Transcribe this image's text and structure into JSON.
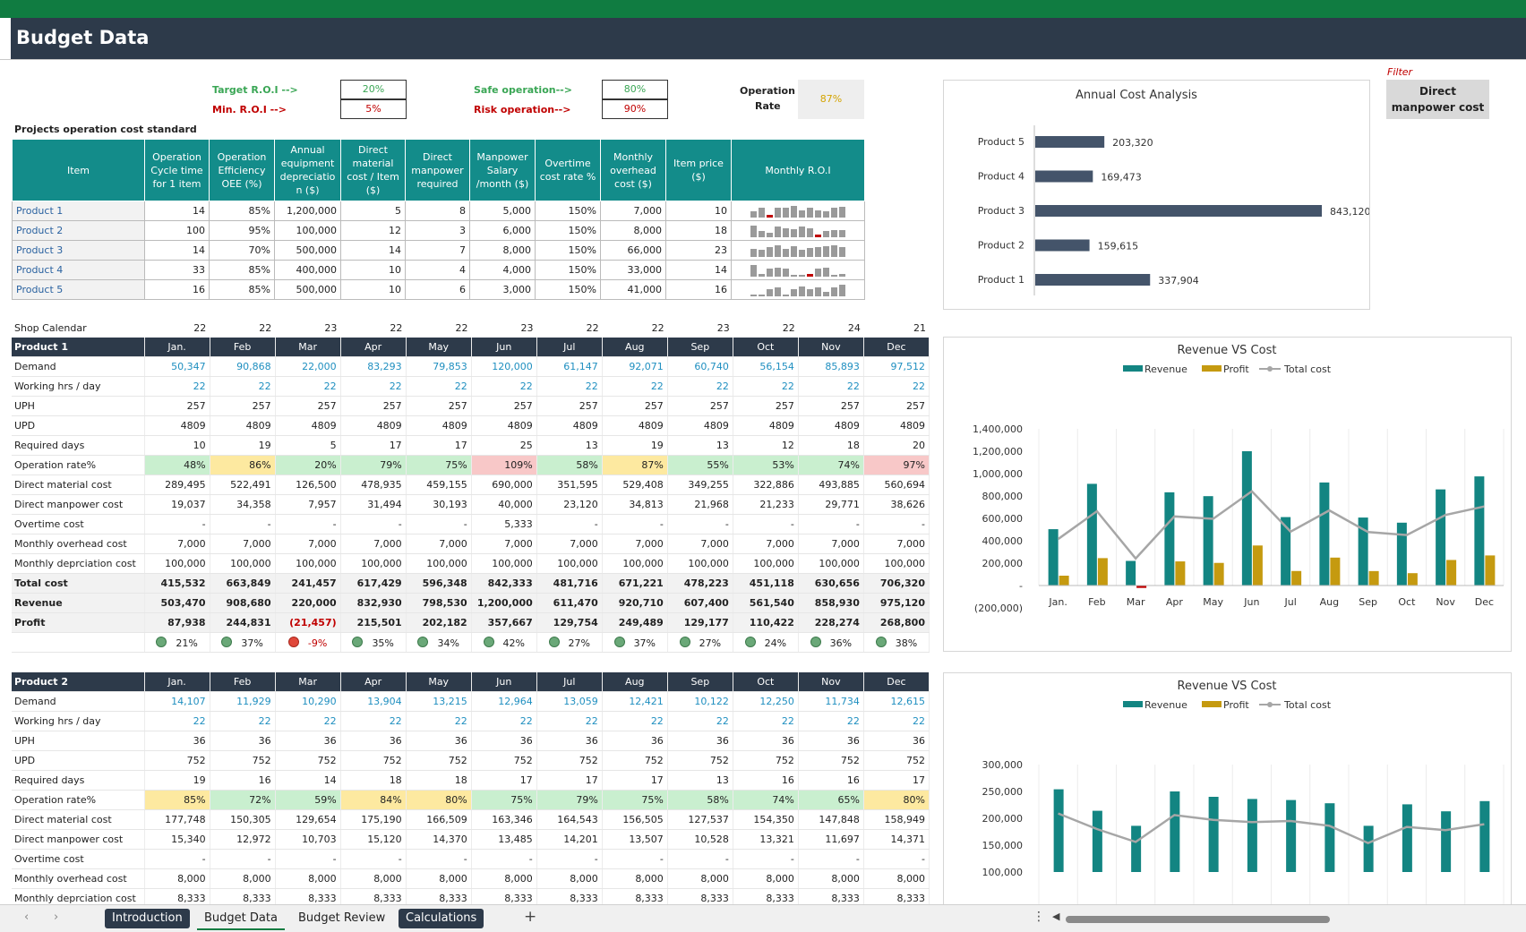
{
  "title": "Budget Data",
  "kpi": {
    "target_roi_label": "Target R.O.I -->",
    "target_roi": "20%",
    "min_roi_label": "Min.  R.O.I -->",
    "min_roi": "5%",
    "safe_label": "Safe operation-->",
    "safe": "80%",
    "risk_label": "Risk operation-->",
    "risk": "90%",
    "op_rate_label_1": "Operation",
    "op_rate_label_2": "Rate",
    "op_rate": "87%"
  },
  "standard": {
    "caption": "Projects operation cost standard",
    "headers": [
      "Item",
      "Operation Cycle time for 1 item",
      "Operation Efficiency OEE (%)",
      "Annual equipment depreciatio n ($)",
      "Direct material cost / Item ($)",
      "Direct manpower required",
      "Manpower Salary /month ($)",
      "Overtime cost rate %",
      "Monthly overhead cost ($)",
      "Item price ($)",
      "Monthly R.O.I"
    ],
    "rows": [
      {
        "name": "Product 1",
        "cells": [
          "14",
          "85%",
          "1,200,000",
          "5",
          "8",
          "5,000",
          "150%",
          "7,000",
          "10"
        ],
        "spark": [
          21,
          37,
          -9,
          35,
          34,
          42,
          27,
          37,
          27,
          24,
          36,
          38
        ]
      },
      {
        "name": "Product 2",
        "cells": [
          "100",
          "95%",
          "100,000",
          "12",
          "3",
          "6,000",
          "150%",
          "8,000",
          "18"
        ],
        "spark": [
          38,
          20,
          14,
          34,
          30,
          26,
          36,
          28,
          -3,
          20,
          22,
          24
        ]
      },
      {
        "name": "Product 3",
        "cells": [
          "14",
          "70%",
          "500,000",
          "14",
          "7",
          "8,000",
          "150%",
          "66,000",
          "23"
        ],
        "spark": [
          10,
          9,
          12,
          14,
          10,
          13,
          9,
          11,
          12,
          13,
          14,
          12
        ]
      },
      {
        "name": "Product 4",
        "cells": [
          "33",
          "85%",
          "400,000",
          "10",
          "4",
          "4,000",
          "150%",
          "33,000",
          "14"
        ],
        "spark": [
          18,
          4,
          12,
          14,
          13,
          3,
          2,
          -6,
          12,
          14,
          3,
          4
        ]
      },
      {
        "name": "Product 5",
        "cells": [
          "16",
          "85%",
          "500,000",
          "10",
          "6",
          "3,000",
          "150%",
          "41,000",
          "16"
        ],
        "spark": [
          2,
          2,
          10,
          12,
          3,
          10,
          14,
          10,
          12,
          6,
          12,
          16
        ]
      }
    ]
  },
  "filter": {
    "label": "Filter",
    "value": "Direct manpower cost"
  },
  "annual": {
    "title": "Annual Cost Analysis",
    "chart_data": {
      "type": "bar",
      "categories": [
        "Product 5",
        "Product 4",
        "Product 3",
        "Product 2",
        "Product 1"
      ],
      "values": [
        203320,
        169473,
        843120,
        159615,
        337904
      ],
      "labels": [
        "203,320",
        "169,473",
        "843,120",
        "159,615",
        "337,904"
      ]
    }
  },
  "calendar": {
    "label": "Shop Calendar",
    "days": [
      "22",
      "22",
      "23",
      "22",
      "22",
      "23",
      "22",
      "22",
      "23",
      "22",
      "24",
      "21"
    ]
  },
  "months": [
    "Jan.",
    "Feb",
    "Mar",
    "Apr",
    "May",
    "Jun",
    "Jul",
    "Aug",
    "Sep",
    "Oct",
    "Nov",
    "Dec"
  ],
  "p1": {
    "name": "Product 1",
    "rows": [
      {
        "label": "Demand",
        "cls": "blue",
        "v": [
          "50,347",
          "90,868",
          "22,000",
          "83,293",
          "79,853",
          "120,000",
          "61,147",
          "92,071",
          "60,740",
          "56,154",
          "85,893",
          "97,512"
        ]
      },
      {
        "label": "Working hrs / day",
        "cls": "blue",
        "v": [
          "22",
          "22",
          "22",
          "22",
          "22",
          "22",
          "22",
          "22",
          "22",
          "22",
          "22",
          "22"
        ]
      },
      {
        "label": "UPH",
        "v": [
          "257",
          "257",
          "257",
          "257",
          "257",
          "257",
          "257",
          "257",
          "257",
          "257",
          "257",
          "257"
        ]
      },
      {
        "label": "UPD",
        "v": [
          "4809",
          "4809",
          "4809",
          "4809",
          "4809",
          "4809",
          "4809",
          "4809",
          "4809",
          "4809",
          "4809",
          "4809"
        ]
      },
      {
        "label": "Required days",
        "v": [
          "10",
          "19",
          "5",
          "17",
          "17",
          "25",
          "13",
          "19",
          "13",
          "12",
          "18",
          "20"
        ]
      },
      {
        "label": "Operation rate%",
        "rate": true,
        "v": [
          "48%",
          "86%",
          "20%",
          "79%",
          "75%",
          "109%",
          "58%",
          "87%",
          "55%",
          "53%",
          "74%",
          "97%"
        ]
      },
      {
        "label": "Direct material cost",
        "v": [
          "289,495",
          "522,491",
          "126,500",
          "478,935",
          "459,155",
          "690,000",
          "351,595",
          "529,408",
          "349,255",
          "322,886",
          "493,885",
          "560,694"
        ]
      },
      {
        "label": "Direct manpower cost",
        "v": [
          "19,037",
          "34,358",
          "7,957",
          "31,494",
          "30,193",
          "40,000",
          "23,120",
          "34,813",
          "21,968",
          "21,233",
          "29,771",
          "38,626"
        ]
      },
      {
        "label": "Overtime cost",
        "v": [
          "-",
          "-",
          "-",
          "-",
          "-",
          "5,333",
          "-",
          "-",
          "-",
          "-",
          "-",
          "-"
        ]
      },
      {
        "label": "Monthly overhead cost",
        "v": [
          "7,000",
          "7,000",
          "7,000",
          "7,000",
          "7,000",
          "7,000",
          "7,000",
          "7,000",
          "7,000",
          "7,000",
          "7,000",
          "7,000"
        ]
      },
      {
        "label": "Monthly deprciation cost",
        "v": [
          "100,000",
          "100,000",
          "100,000",
          "100,000",
          "100,000",
          "100,000",
          "100,000",
          "100,000",
          "100,000",
          "100,000",
          "100,000",
          "100,000"
        ]
      },
      {
        "label": "Total cost",
        "bold": true,
        "tot": true,
        "v": [
          "415,532",
          "663,849",
          "241,457",
          "617,429",
          "596,348",
          "842,333",
          "481,716",
          "671,221",
          "478,223",
          "451,118",
          "630,656",
          "706,320"
        ]
      },
      {
        "label": "Revenue",
        "bold": true,
        "tot": true,
        "v": [
          "503,470",
          "908,680",
          "220,000",
          "832,930",
          "798,530",
          "1,200,000",
          "611,470",
          "920,710",
          "607,400",
          "561,540",
          "858,930",
          "975,120"
        ]
      },
      {
        "label": "Profit",
        "bold": true,
        "tot": true,
        "v": [
          "87,938",
          "244,831",
          "(21,457)",
          "215,501",
          "202,182",
          "357,667",
          "129,754",
          "249,489",
          "129,177",
          "110,422",
          "228,274",
          "268,800"
        ]
      }
    ],
    "roi": [
      "21%",
      "37%",
      "-9%",
      "35%",
      "34%",
      "42%",
      "27%",
      "37%",
      "27%",
      "24%",
      "36%",
      "38%"
    ]
  },
  "p2": {
    "name": "Product 2",
    "rows": [
      {
        "label": "Demand",
        "cls": "blue",
        "v": [
          "14,107",
          "11,929",
          "10,290",
          "13,904",
          "13,215",
          "12,964",
          "13,059",
          "12,421",
          "10,122",
          "12,250",
          "11,734",
          "12,615"
        ]
      },
      {
        "label": "Working hrs / day",
        "cls": "blue",
        "v": [
          "22",
          "22",
          "22",
          "22",
          "22",
          "22",
          "22",
          "22",
          "22",
          "22",
          "22",
          "22"
        ]
      },
      {
        "label": "UPH",
        "v": [
          "36",
          "36",
          "36",
          "36",
          "36",
          "36",
          "36",
          "36",
          "36",
          "36",
          "36",
          "36"
        ]
      },
      {
        "label": "UPD",
        "v": [
          "752",
          "752",
          "752",
          "752",
          "752",
          "752",
          "752",
          "752",
          "752",
          "752",
          "752",
          "752"
        ]
      },
      {
        "label": "Required days",
        "v": [
          "19",
          "16",
          "14",
          "18",
          "18",
          "17",
          "17",
          "17",
          "13",
          "16",
          "16",
          "17"
        ]
      },
      {
        "label": "Operation rate%",
        "rate": true,
        "v": [
          "85%",
          "72%",
          "59%",
          "84%",
          "80%",
          "75%",
          "79%",
          "75%",
          "58%",
          "74%",
          "65%",
          "80%"
        ]
      },
      {
        "label": "Direct material cost",
        "v": [
          "177,748",
          "150,305",
          "129,654",
          "175,190",
          "166,509",
          "163,346",
          "164,543",
          "156,505",
          "127,537",
          "154,350",
          "147,848",
          "158,949"
        ]
      },
      {
        "label": "Direct manpower cost",
        "v": [
          "15,340",
          "12,972",
          "10,703",
          "15,120",
          "14,370",
          "13,485",
          "14,201",
          "13,507",
          "10,528",
          "13,321",
          "11,697",
          "14,371"
        ]
      },
      {
        "label": "Overtime cost",
        "v": [
          "-",
          "-",
          "-",
          "-",
          "-",
          "-",
          "-",
          "-",
          "-",
          "-",
          "-",
          "-"
        ]
      },
      {
        "label": "Monthly overhead cost",
        "v": [
          "8,000",
          "8,000",
          "8,000",
          "8,000",
          "8,000",
          "8,000",
          "8,000",
          "8,000",
          "8,000",
          "8,000",
          "8,000",
          "8,000"
        ]
      },
      {
        "label": "Monthly deprciation cost",
        "v": [
          "8,333",
          "8,333",
          "8,333",
          "8,333",
          "8,333",
          "8,333",
          "8,333",
          "8,333",
          "8,333",
          "8,333",
          "8,333",
          "8,333"
        ]
      }
    ]
  },
  "rev1": {
    "title": "Revenue VS Cost",
    "legend": [
      "Revenue",
      "Profit",
      "Total cost"
    ],
    "colors": {
      "revenue": "#138582",
      "profit": "#c59a10",
      "cost": "#a6a6a6"
    },
    "chart_data": {
      "type": "bar",
      "ylim": [
        -200000,
        1400000
      ],
      "yticks": [
        "1,400,000",
        "1,200,000",
        "1,000,000",
        "800,000",
        "600,000",
        "400,000",
        "200,000",
        "-",
        "(200,000)"
      ],
      "series": [
        {
          "name": "Revenue",
          "values": [
            503470,
            908680,
            220000,
            832930,
            798530,
            1200000,
            611470,
            920710,
            607400,
            561540,
            858930,
            975120
          ]
        },
        {
          "name": "Profit",
          "values": [
            87938,
            244831,
            -21457,
            215501,
            202182,
            357667,
            129754,
            249489,
            129177,
            110422,
            228274,
            268800
          ]
        },
        {
          "name": "Total cost",
          "values": [
            415532,
            663849,
            241457,
            617429,
            596348,
            842333,
            481716,
            671221,
            478223,
            451118,
            630656,
            706320
          ]
        }
      ]
    }
  },
  "rev2": {
    "title": "Revenue VS Cost",
    "legend": [
      "Revenue",
      "Profit",
      "Total cost"
    ],
    "chart_data": {
      "type": "bar",
      "ylim": [
        100000,
        300000
      ],
      "yticks": [
        "300,000",
        "250,000",
        "200,000",
        "150,000",
        "100,000"
      ],
      "series": [
        {
          "name": "Revenue",
          "values": [
            254000,
            214000,
            186000,
            250000,
            240000,
            236000,
            234000,
            228000,
            186000,
            226000,
            213000,
            232000
          ]
        },
        {
          "name": "Total cost",
          "values": [
            209000,
            180000,
            156000,
            206000,
            197000,
            193000,
            195000,
            186000,
            154000,
            184000,
            178000,
            189000
          ]
        }
      ]
    }
  },
  "tabs": [
    "Introduction",
    "Budget Data",
    "Budget Review",
    "Calculations"
  ],
  "add_tab": "+"
}
